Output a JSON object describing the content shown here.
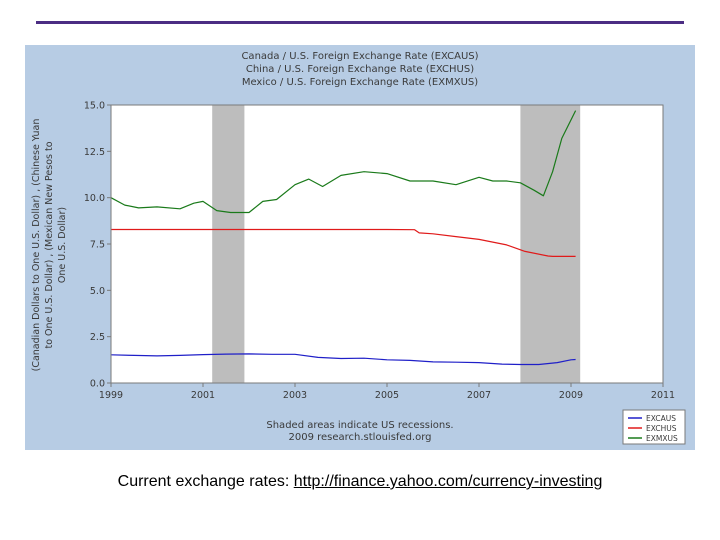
{
  "colors": {
    "panel_bg": "#b7cce4",
    "plot_bg": "#ffffff",
    "recession": "#bdbdbd",
    "excaus": "#1f1fc8",
    "exchus": "#e01a1a",
    "exmxus": "#1a7a1a",
    "rule": "#4b2d83"
  },
  "caption": {
    "label": "Current exchange rates: ",
    "url": "http://finance.yahoo.com/currency-investing"
  },
  "chart_data": {
    "type": "line",
    "title_lines": [
      "Canada / U.S. Foreign Exchange Rate (EXCAUS)",
      "China / U.S. Foreign Exchange Rate (EXCHUS)",
      "Mexico / U.S. Foreign Exchange Rate (EXMXUS)"
    ],
    "ylabel_lines": [
      "(Canadian Dollars to One U.S. Dollar) , (Chinese Yuan",
      "to One U.S. Dollar) , (Mexican New Pesos to",
      "One U.S. Dollar)"
    ],
    "ylim": [
      0,
      15
    ],
    "xlim": [
      1999,
      2011
    ],
    "y_ticks": [
      "0.0",
      "2.5",
      "5.0",
      "7.5",
      "10.0",
      "12.5",
      "15.0"
    ],
    "y_tick_values": [
      0,
      2.5,
      5,
      7.5,
      10,
      12.5,
      15
    ],
    "x_ticks": [
      "1999",
      "2001",
      "2003",
      "2005",
      "2007",
      "2009",
      "2011"
    ],
    "x_tick_values": [
      1999,
      2001,
      2003,
      2005,
      2007,
      2009,
      2011
    ],
    "recessions": [
      [
        2001.2,
        2001.9
      ],
      [
        2007.9,
        2009.2
      ]
    ],
    "note_lines": [
      "Shaded areas indicate US recessions.",
      "2009 research.stlouisfed.org"
    ],
    "series": [
      {
        "name": "EXCAUS",
        "x": [
          1999.0,
          1999.5,
          2000.0,
          2000.5,
          2001.0,
          2001.5,
          2002.0,
          2002.5,
          2003.0,
          2003.5,
          2004.0,
          2004.5,
          2005.0,
          2005.5,
          2006.0,
          2006.5,
          2007.0,
          2007.5,
          2007.9,
          2008.3,
          2008.7,
          2009.0,
          2009.1
        ],
        "values": [
          1.52,
          1.49,
          1.46,
          1.49,
          1.53,
          1.56,
          1.57,
          1.55,
          1.55,
          1.38,
          1.32,
          1.34,
          1.25,
          1.22,
          1.14,
          1.12,
          1.1,
          1.02,
          1.0,
          1.0,
          1.1,
          1.25,
          1.27
        ]
      },
      {
        "name": "EXCHUS",
        "x": [
          1999.0,
          2000.0,
          2001.0,
          2002.0,
          2003.0,
          2004.0,
          2005.0,
          2005.6,
          2005.7,
          2006.0,
          2006.5,
          2007.0,
          2007.3,
          2007.6,
          2008.0,
          2008.5,
          2008.6,
          2009.1
        ],
        "values": [
          8.28,
          8.28,
          8.28,
          8.28,
          8.28,
          8.28,
          8.28,
          8.27,
          8.1,
          8.05,
          7.9,
          7.75,
          7.6,
          7.45,
          7.1,
          6.85,
          6.83,
          6.83
        ]
      },
      {
        "name": "EXMXUS",
        "x": [
          1999.0,
          1999.3,
          1999.6,
          2000.0,
          2000.5,
          2000.8,
          2001.0,
          2001.3,
          2001.6,
          2002.0,
          2002.3,
          2002.6,
          2003.0,
          2003.3,
          2003.6,
          2004.0,
          2004.5,
          2005.0,
          2005.5,
          2006.0,
          2006.5,
          2007.0,
          2007.3,
          2007.6,
          2007.9,
          2008.2,
          2008.4,
          2008.6,
          2008.8,
          2009.1
        ],
        "values": [
          10.0,
          9.6,
          9.45,
          9.5,
          9.4,
          9.7,
          9.8,
          9.3,
          9.2,
          9.2,
          9.8,
          9.9,
          10.7,
          11.0,
          10.6,
          11.2,
          11.4,
          11.3,
          10.9,
          10.9,
          10.7,
          11.1,
          10.9,
          10.9,
          10.8,
          10.4,
          10.1,
          11.4,
          13.2,
          14.7
        ]
      }
    ],
    "legend": [
      "EXCAUS",
      "EXCHUS",
      "EXMXUS"
    ],
    "legend_position": "bottom-right"
  }
}
